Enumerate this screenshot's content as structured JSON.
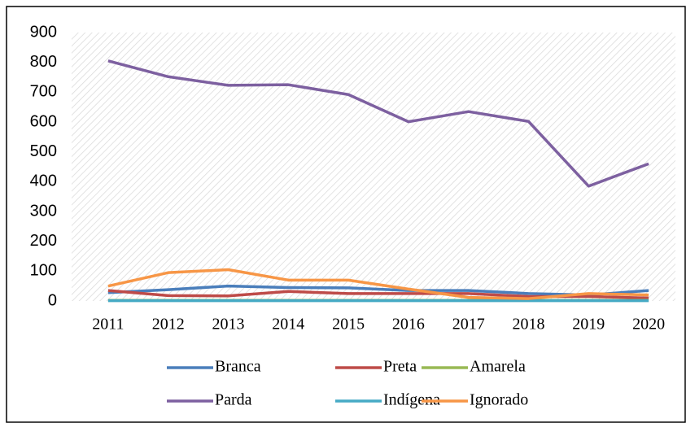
{
  "chart_data": {
    "type": "line",
    "categories": [
      "2011",
      "2012",
      "2013",
      "2014",
      "2015",
      "2016",
      "2017",
      "2018",
      "2019",
      "2020"
    ],
    "series": [
      {
        "name": "Branca",
        "color": "#4a7ebb",
        "values": [
          28,
          38,
          50,
          45,
          44,
          35,
          35,
          25,
          20,
          35
        ]
      },
      {
        "name": "Preta",
        "color": "#be4b48",
        "values": [
          35,
          18,
          17,
          32,
          25,
          25,
          25,
          15,
          15,
          10
        ]
      },
      {
        "name": "Amarela",
        "color": "#98b954",
        "values": [
          2,
          2,
          2,
          2,
          2,
          2,
          2,
          2,
          2,
          2
        ]
      },
      {
        "name": "Parda",
        "color": "#7d60a0",
        "values": [
          805,
          752,
          723,
          725,
          692,
          601,
          635,
          602,
          385,
          460
        ]
      },
      {
        "name": "Indígena",
        "color": "#46aac5",
        "values": [
          1,
          1,
          1,
          1,
          1,
          1,
          1,
          1,
          1,
          1
        ]
      },
      {
        "name": "Ignorado",
        "color": "#f79646",
        "values": [
          50,
          95,
          105,
          70,
          70,
          40,
          12,
          8,
          25,
          20
        ]
      }
    ],
    "ylim": [
      0,
      900
    ],
    "yticks": [
      0,
      100,
      200,
      300,
      400,
      500,
      600,
      700,
      800,
      900
    ],
    "grid": true,
    "legend": "bottom"
  }
}
